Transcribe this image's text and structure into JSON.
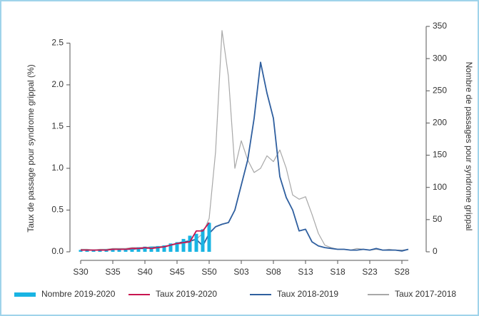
{
  "chart_data": {
    "type": "combo",
    "y_label": "Taux de passage pour syndrome grippal (%)",
    "y2_label": "Nombre de passages pour syndrome grippal",
    "categories": [
      "S30",
      null,
      null,
      null,
      null,
      "S35",
      null,
      null,
      null,
      null,
      "S40",
      null,
      null,
      null,
      null,
      "S45",
      null,
      null,
      null,
      null,
      "S50",
      null,
      null,
      null,
      null,
      "S03",
      null,
      null,
      null,
      null,
      "S08",
      null,
      null,
      null,
      null,
      "S13",
      null,
      null,
      null,
      null,
      "S18",
      null,
      null,
      null,
      null,
      "S23",
      null,
      null,
      null,
      null,
      "S28",
      null
    ],
    "ylim": [
      0,
      2.7
    ],
    "yticks": [
      {
        "value": 0,
        "label": "0.0"
      },
      0.5,
      {
        "value": 1,
        "label": "1.0"
      },
      1.5,
      {
        "value": 2,
        "label": "2.0"
      },
      2.5
    ],
    "y2lim": [
      0,
      350
    ],
    "y2ticks": [
      0,
      50,
      100,
      150,
      200,
      250,
      300,
      350
    ],
    "series": [
      {
        "name": "Nombre 2019-2020",
        "type": "bar",
        "axis": "y2",
        "color": "#19b4e3",
        "values": [
          3,
          3,
          3,
          3,
          4,
          4,
          5,
          5,
          6,
          7,
          8,
          8,
          9,
          10,
          13,
          15,
          20,
          25,
          28,
          35,
          45,
          null,
          null,
          null,
          null,
          null,
          null,
          null,
          null,
          null,
          null,
          null,
          null,
          null,
          null,
          null,
          null,
          null,
          null,
          null,
          null,
          null,
          null,
          null,
          null,
          null,
          null,
          null,
          null,
          null,
          null,
          null
        ]
      },
      {
        "name": "Taux 2019-2020",
        "type": "line",
        "color": "#c8154f",
        "values": [
          0.02,
          0.02,
          0.02,
          0.02,
          0.02,
          0.03,
          0.03,
          0.03,
          0.04,
          0.04,
          0.05,
          0.04,
          0.05,
          0.06,
          0.08,
          0.1,
          0.11,
          0.12,
          0.25,
          0.25,
          0.35,
          null,
          null,
          null,
          null,
          null,
          null,
          null,
          null,
          null,
          null,
          null,
          null,
          null,
          null,
          null,
          null,
          null,
          null,
          null,
          null,
          null,
          null,
          null,
          null,
          null,
          null,
          null,
          null,
          null,
          null,
          null
        ]
      },
      {
        "name": "Taux 2018-2019",
        "type": "line",
        "color": "#2f5f9f",
        "values": [
          0.02,
          0.02,
          0.02,
          0.02,
          0.02,
          0.03,
          0.03,
          0.03,
          0.03,
          0.04,
          0.04,
          0.05,
          0.05,
          0.06,
          0.08,
          0.1,
          0.12,
          0.13,
          0.15,
          0.07,
          0.22,
          0.3,
          0.33,
          0.35,
          0.5,
          0.8,
          1.1,
          1.6,
          2.27,
          1.9,
          1.6,
          0.9,
          0.65,
          0.5,
          0.25,
          0.27,
          0.12,
          0.07,
          0.05,
          0.04,
          0.03,
          0.03,
          0.02,
          0.02,
          0.03,
          0.02,
          0.04,
          0.02,
          0.02,
          0.02,
          0.01,
          0.03
        ]
      },
      {
        "name": "Taux 2017-2018",
        "type": "line",
        "color": "#a8a8a8",
        "values": [
          0.03,
          0.03,
          0.02,
          0.03,
          0.03,
          0.04,
          0.04,
          0.04,
          0.05,
          0.05,
          0.05,
          0.06,
          0.06,
          0.07,
          0.08,
          0.09,
          0.1,
          0.12,
          0.15,
          0.22,
          0.4,
          1.2,
          2.65,
          2.1,
          1.0,
          1.33,
          1.1,
          0.95,
          1.0,
          1.15,
          1.08,
          1.22,
          1.0,
          0.68,
          0.63,
          0.66,
          0.45,
          0.22,
          0.08,
          0.05,
          0.03,
          0.03,
          0.02,
          0.04,
          0.03,
          0.02,
          0.03,
          0.02,
          0.03,
          0.02,
          0.02,
          0.03
        ]
      }
    ]
  }
}
